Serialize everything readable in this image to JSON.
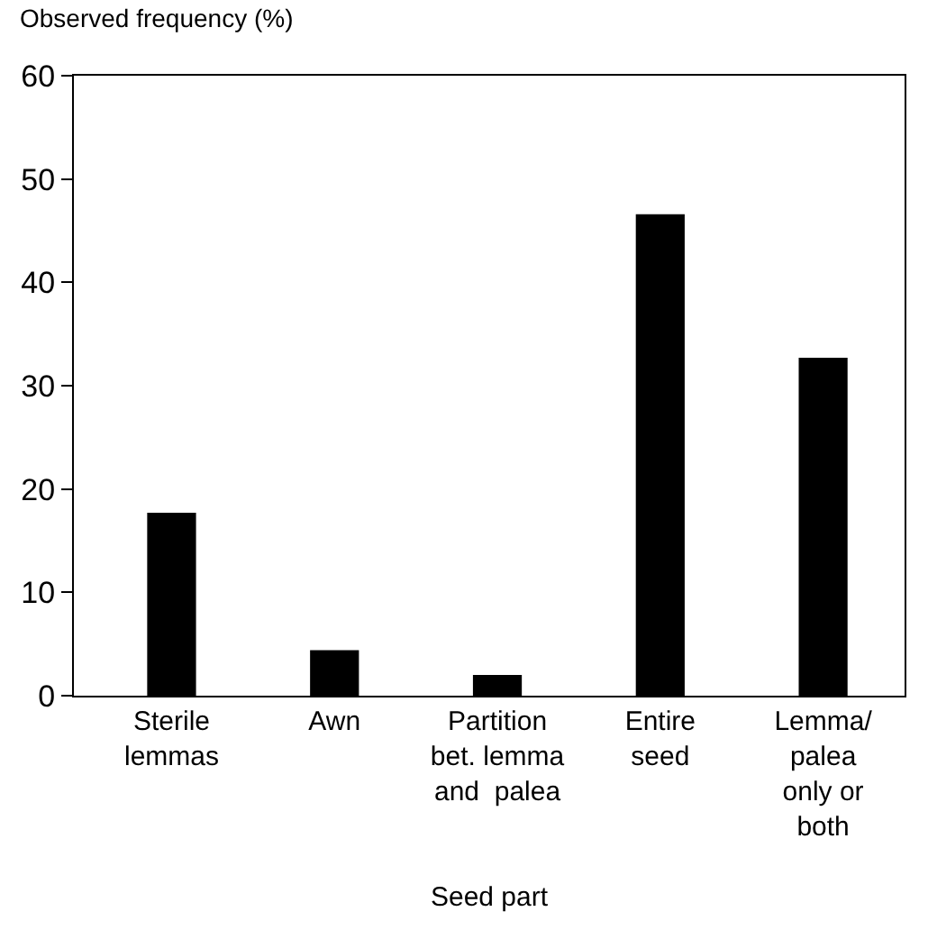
{
  "chart_data": {
    "type": "bar",
    "xlabel": "Seed part",
    "ylabel": "Observed frequency (%)",
    "categories": [
      "Sterile\nlemmas",
      "Awn",
      "Partition\nbet. lemma\nand  palea",
      "Entire\nseed",
      "Lemma/\npalea\nonly or\nboth"
    ],
    "values": [
      17.7,
      4.4,
      2.0,
      46.6,
      32.7
    ],
    "color": "#000000",
    "ylim": [
      0,
      60
    ],
    "yticks": [
      0,
      10,
      20,
      30,
      40,
      50,
      60
    ]
  }
}
